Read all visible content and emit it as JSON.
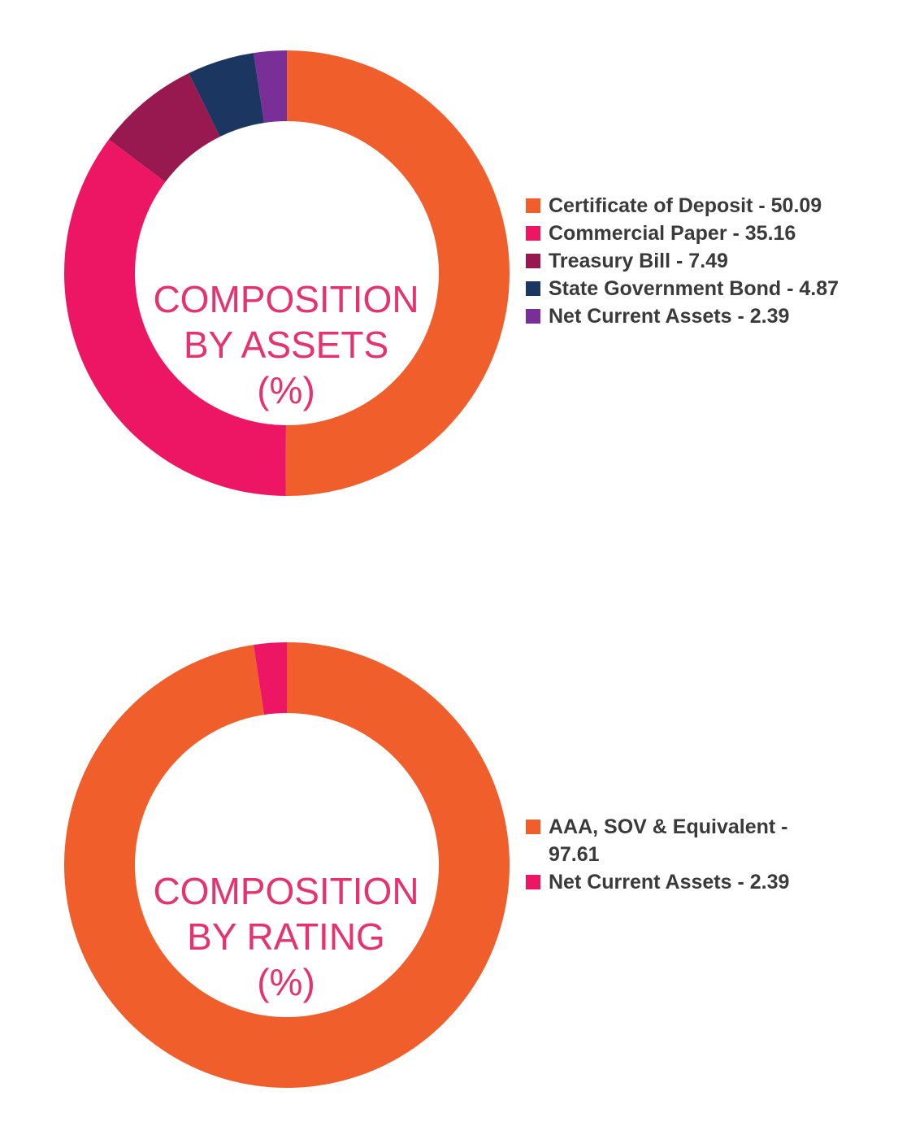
{
  "chart_data": [
    {
      "type": "pie",
      "title_lines": [
        "COMPOSITION",
        "BY ASSETS",
        "(%)"
      ],
      "categories": [
        "Certificate of Deposit",
        "Commercial Paper",
        "Treasury Bill",
        "State Government Bond",
        "Net Current Assets"
      ],
      "values": [
        50.09,
        35.16,
        7.49,
        4.87,
        2.39
      ],
      "legend_labels": [
        "Certificate of Deposit - 50.09",
        "Commercial Paper - 35.16",
        "Treasury Bill - 7.49",
        "State Government Bond - 4.87",
        "Net Current Assets - 2.39"
      ],
      "colors": [
        "#f05e2b",
        "#ec1665",
        "#98194f",
        "#1b3761",
        "#7a2e97"
      ],
      "legend_position": "right"
    },
    {
      "type": "pie",
      "title_lines": [
        "COMPOSITION",
        "BY RATING",
        "(%)"
      ],
      "categories": [
        "AAA, SOV & Equivalent",
        "Net Current Assets"
      ],
      "values": [
        97.61,
        2.39
      ],
      "legend_labels": [
        "AAA, SOV & Equivalent - 97.61",
        "Net Current Assets - 2.39"
      ],
      "colors": [
        "#f05e2b",
        "#ec1665"
      ],
      "legend_position": "right"
    }
  ]
}
